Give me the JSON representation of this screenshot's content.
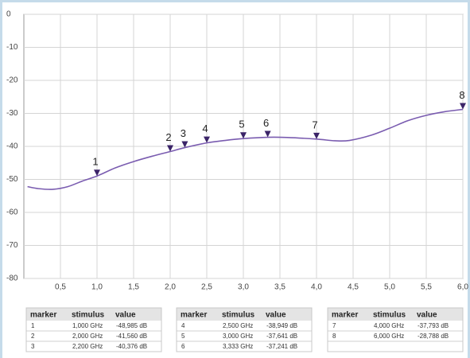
{
  "chart_data": {
    "type": "line",
    "xlim": [
      0,
      6
    ],
    "ylim": [
      -80,
      0
    ],
    "xticks": [
      {
        "value": 0.5,
        "label": "0,5"
      },
      {
        "value": 1.0,
        "label": "1,0"
      },
      {
        "value": 1.5,
        "label": "1,5"
      },
      {
        "value": 2.0,
        "label": "2,0"
      },
      {
        "value": 2.5,
        "label": "2,5"
      },
      {
        "value": 3.0,
        "label": "3,0"
      },
      {
        "value": 3.5,
        "label": "3,5"
      },
      {
        "value": 4.0,
        "label": "4,0"
      },
      {
        "value": 4.5,
        "label": "4,5"
      },
      {
        "value": 5.0,
        "label": "5,0"
      },
      {
        "value": 5.5,
        "label": "5,5"
      },
      {
        "value": 6.0,
        "label": "6,0"
      }
    ],
    "yticks": [
      0,
      -10,
      -20,
      -30,
      -40,
      -50,
      -60,
      -70,
      -80
    ],
    "grid": true,
    "series": [
      {
        "color": "#7a5cb0",
        "x": [
          0.05,
          0.2,
          0.4,
          0.6,
          0.8,
          1.0,
          1.25,
          1.5,
          1.75,
          2.0,
          2.2,
          2.5,
          2.75,
          3.0,
          3.333,
          3.6,
          4.0,
          4.25,
          4.45,
          4.75,
          5.0,
          5.25,
          5.5,
          5.75,
          6.0
        ],
        "values": [
          -52.2,
          -52.8,
          -53,
          -52.2,
          -50.5,
          -48.985,
          -46.5,
          -44.6,
          -43,
          -41.56,
          -40.376,
          -38.949,
          -38.2,
          -37.641,
          -37.241,
          -37.3,
          -37.793,
          -38.3,
          -38.2,
          -36.6,
          -34.5,
          -32.2,
          -30.6,
          -29.5,
          -28.788
        ]
      }
    ],
    "marker_color": "#3b2468",
    "markers": [
      {
        "label": "1",
        "x": 1.0,
        "y": -48.985
      },
      {
        "label": "2",
        "x": 2.0,
        "y": -41.56
      },
      {
        "label": "3",
        "x": 2.2,
        "y": -40.376
      },
      {
        "label": "4",
        "x": 2.5,
        "y": -38.949
      },
      {
        "label": "5",
        "x": 3.0,
        "y": -37.641
      },
      {
        "label": "6",
        "x": 3.333,
        "y": -37.241
      },
      {
        "label": "7",
        "x": 4.0,
        "y": -37.793
      },
      {
        "label": "8",
        "x": 6.0,
        "y": -28.788
      }
    ]
  },
  "tables": [
    {
      "columns": [
        "marker",
        "stimulus",
        "value"
      ],
      "rows": [
        [
          "1",
          "1,000 GHz",
          "-48,985 dB"
        ],
        [
          "2",
          "2,000 GHz",
          "-41,560 dB"
        ],
        [
          "3",
          "2,200 GHz",
          "-40,376 dB"
        ]
      ]
    },
    {
      "columns": [
        "marker",
        "stimulus",
        "value"
      ],
      "rows": [
        [
          "4",
          "2,500 GHz",
          "-38,949 dB"
        ],
        [
          "5",
          "3,000 GHz",
          "-37,641 dB"
        ],
        [
          "6",
          "3,333 GHz",
          "-37,241 dB"
        ]
      ]
    },
    {
      "columns": [
        "marker",
        "stimulus",
        "value"
      ],
      "rows": [
        [
          "7",
          "4,000 GHz",
          "-37,793 dB"
        ],
        [
          "8",
          "6,000 GHz",
          "-28,788 dB"
        ],
        [
          "",
          "",
          ""
        ]
      ]
    }
  ]
}
